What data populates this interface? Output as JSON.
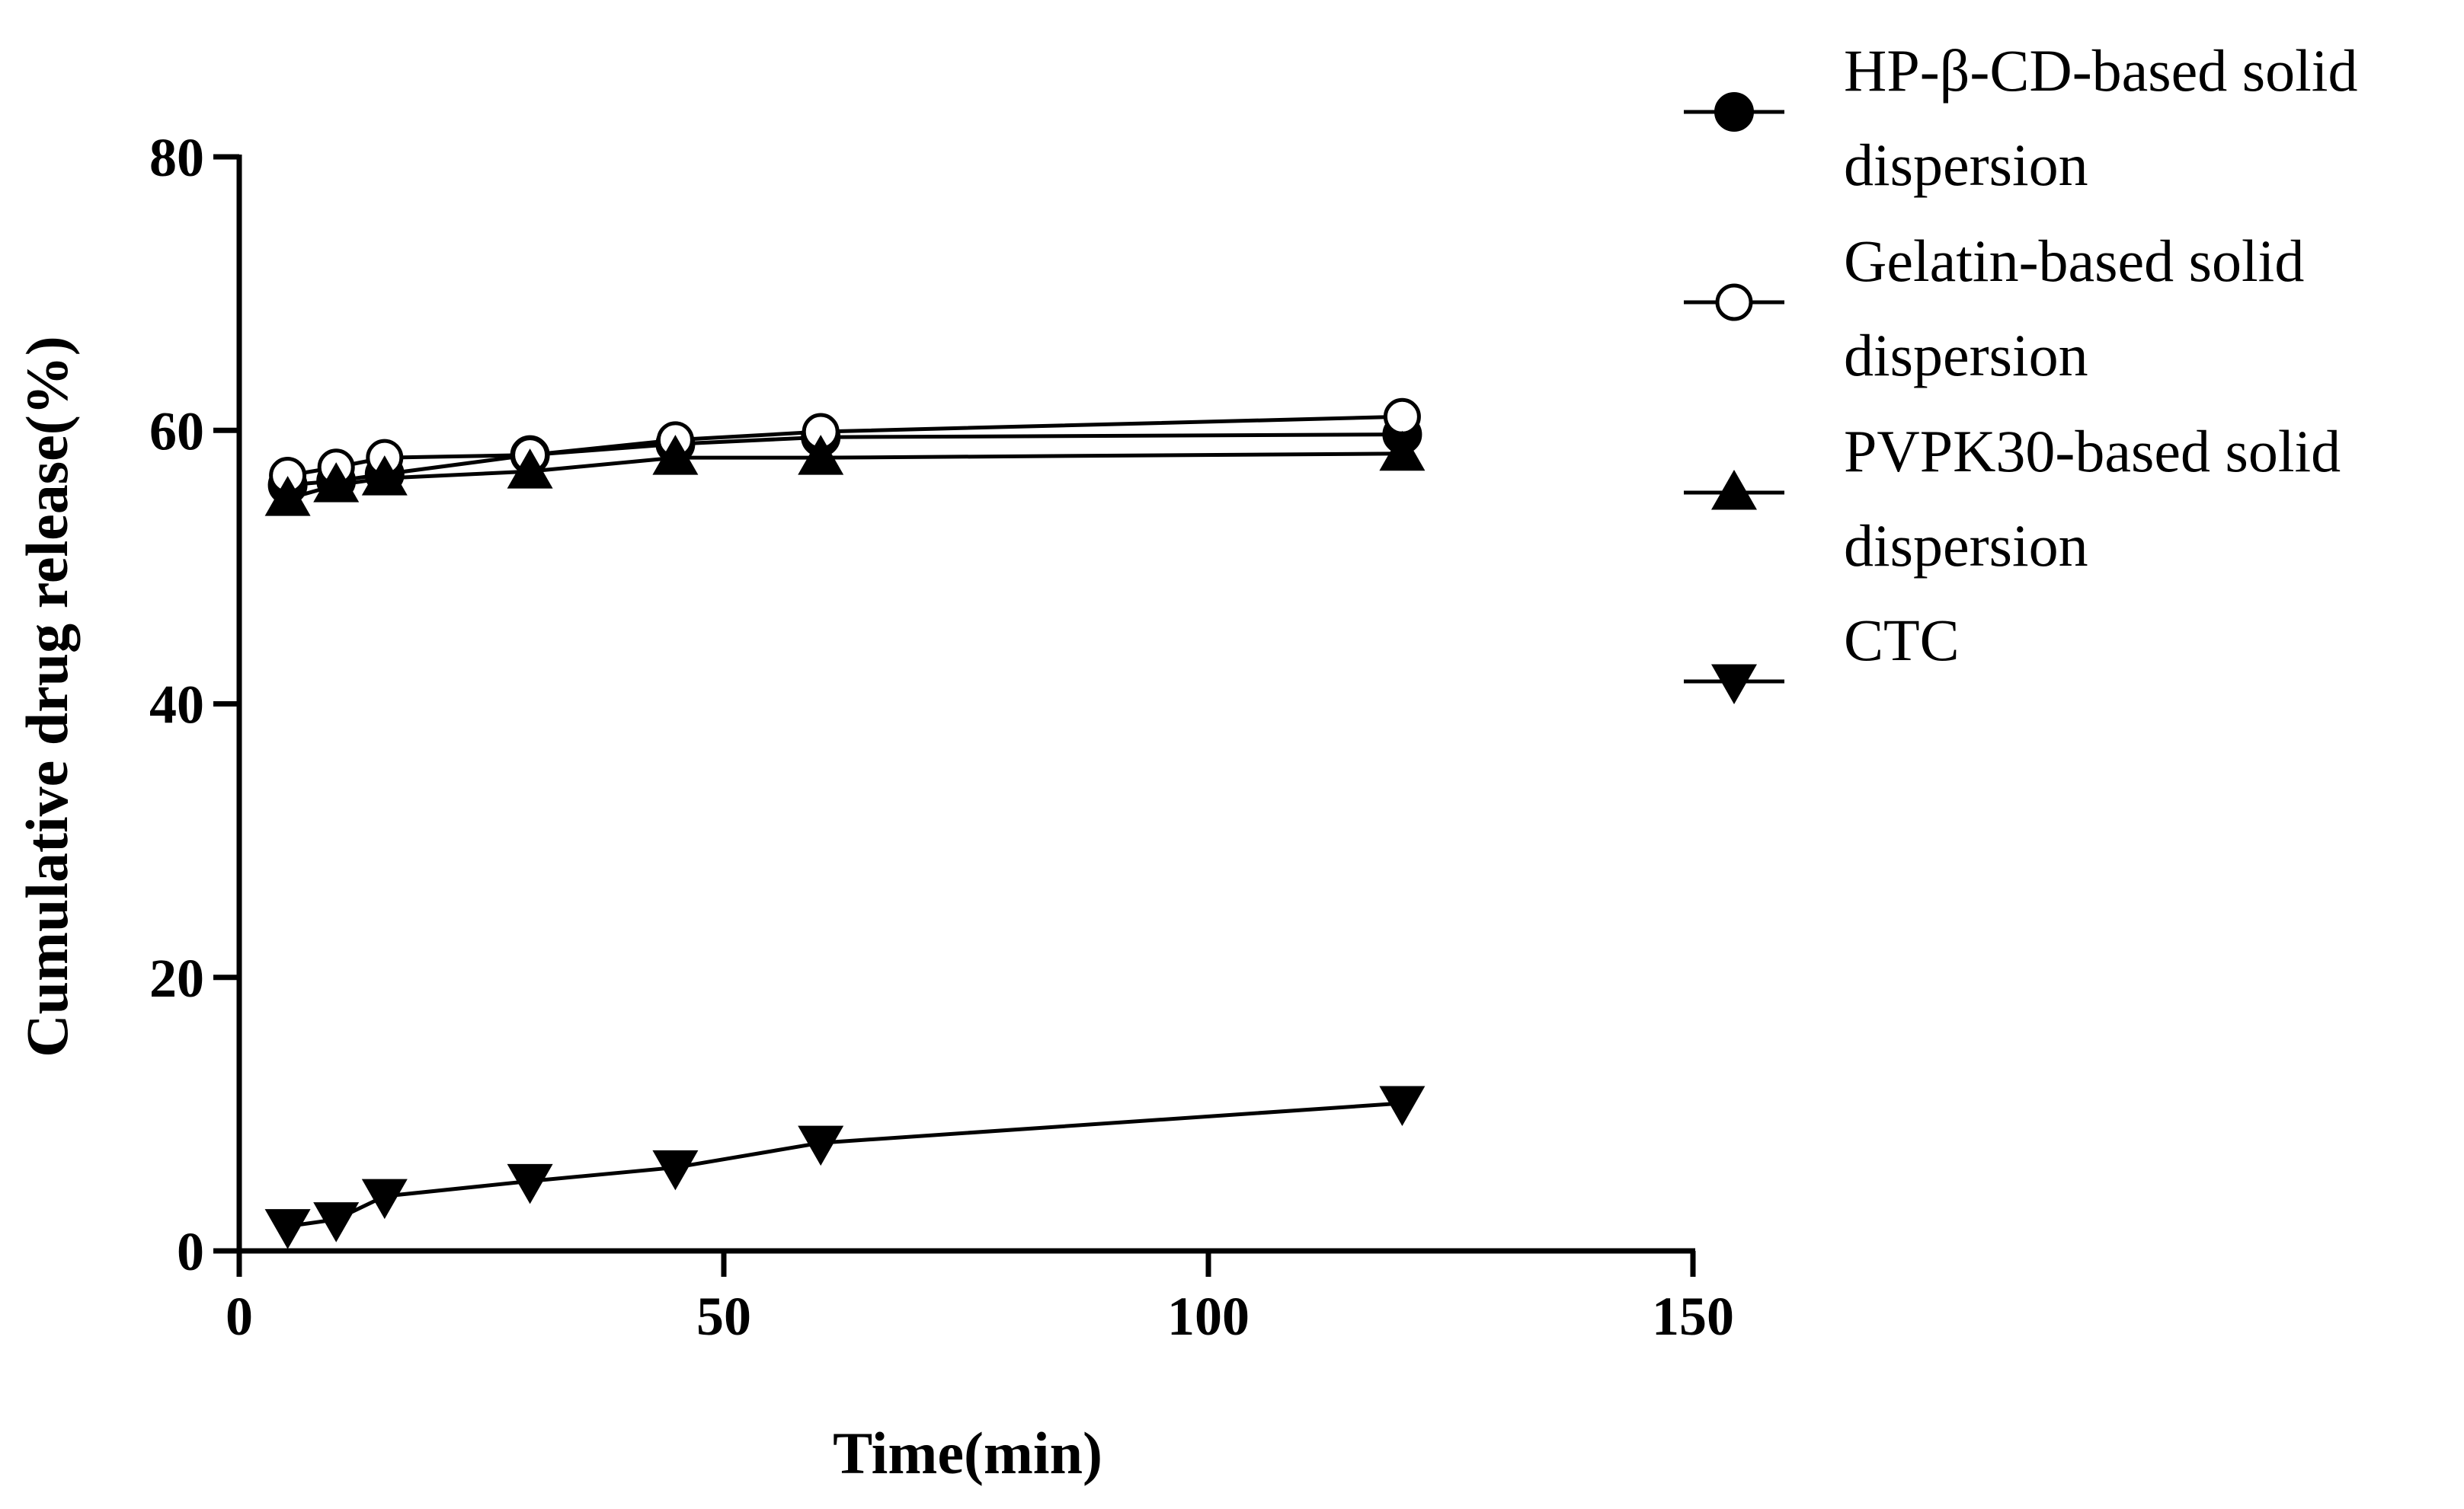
{
  "chart_data": {
    "type": "line",
    "title": "",
    "xlabel": "Time(min)",
    "ylabel": "Cumulative drug release(%)",
    "xlim": [
      0,
      150
    ],
    "ylim": [
      0,
      80
    ],
    "x_ticks": [
      0,
      50,
      100,
      150
    ],
    "y_ticks": [
      0,
      20,
      40,
      60,
      80
    ],
    "grid": false,
    "legend_position": "right",
    "x": [
      5,
      10,
      15,
      30,
      45,
      60,
      120
    ],
    "series": [
      {
        "name": "HP-β-CD-based solid dispersion",
        "legend_lines": [
          "HP-β-CD-based solid",
          "dispersion"
        ],
        "marker": "filled-circle",
        "values": [
          56.0,
          56.3,
          56.8,
          58.2,
          59.0,
          59.5,
          59.7
        ]
      },
      {
        "name": "Gelatin-based solid dispersion",
        "legend_lines": [
          "Gelatin-based solid",
          "dispersion"
        ],
        "marker": "open-circle",
        "values": [
          56.7,
          57.3,
          58.0,
          58.2,
          59.3,
          59.9,
          61.0
        ]
      },
      {
        "name": "PVPK30-based solid dispersion",
        "legend_lines": [
          "PVPK30-based solid",
          "dispersion"
        ],
        "marker": "filled-triangle-up",
        "values": [
          55.0,
          56.0,
          56.5,
          57.0,
          58.0,
          58.0,
          58.3
        ]
      },
      {
        "name": "CTC",
        "legend_lines": [
          "CTC"
        ],
        "marker": "filled-triangle-down",
        "values": [
          1.8,
          2.3,
          4.0,
          5.1,
          6.1,
          7.9,
          10.8
        ]
      }
    ]
  },
  "colors": {
    "line": "#000000",
    "background": "#ffffff"
  }
}
